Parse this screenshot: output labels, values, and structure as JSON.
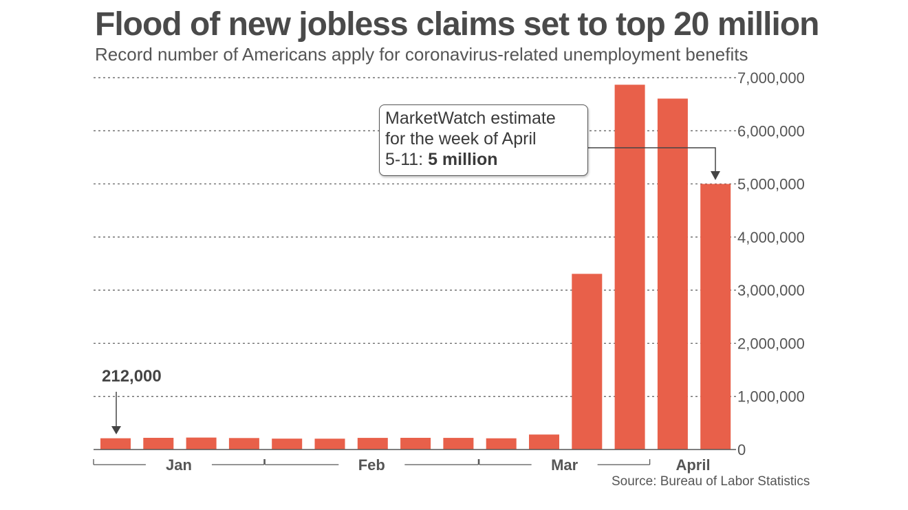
{
  "title": "Flood of new jobless claims set to top 20 million",
  "subtitle": "Record number of Americans apply for coronavirus-related unemployment benefits",
  "source": "Source: Bureau of Labor Statistics",
  "callout": {
    "line1": "MarketWatch estimate",
    "line2": "for the week of April",
    "line3_prefix": "5-11: ",
    "line3_bold": "5 million"
  },
  "first_bar_annotation": "212,000",
  "colors": {
    "bar": "#e8604a",
    "grid": "#555555",
    "text": "#555555"
  },
  "chart_data": {
    "type": "bar",
    "title": "Flood of new jobless claims set to top 20 million",
    "subtitle": "Record number of Americans apply for coronavirus-related unemployment benefits",
    "xlabel": "",
    "ylabel": "",
    "ylim": [
      0,
      7000000
    ],
    "yticks": [
      0,
      1000000,
      2000000,
      3000000,
      4000000,
      5000000,
      6000000,
      7000000
    ],
    "ytick_labels": [
      "0",
      "1,000,000",
      "2,000,000",
      "3,000,000",
      "4,000,000",
      "5,000,000",
      "6,000,000",
      "7,000,000"
    ],
    "grid": true,
    "y_axis_side": "right",
    "month_groups": [
      {
        "label": "Jan",
        "bars": [
          0,
          3
        ]
      },
      {
        "label": "Feb",
        "bars": [
          4,
          8
        ]
      },
      {
        "label": "Mar",
        "bars": [
          9,
          12
        ]
      },
      {
        "label": "April",
        "bars": [
          13,
          14
        ]
      }
    ],
    "values": [
      212000,
      220000,
      225000,
      216000,
      205000,
      204000,
      219000,
      220000,
      219000,
      211000,
      282000,
      3307000,
      6867000,
      6606000,
      5000000
    ],
    "estimate_index": 14
  }
}
